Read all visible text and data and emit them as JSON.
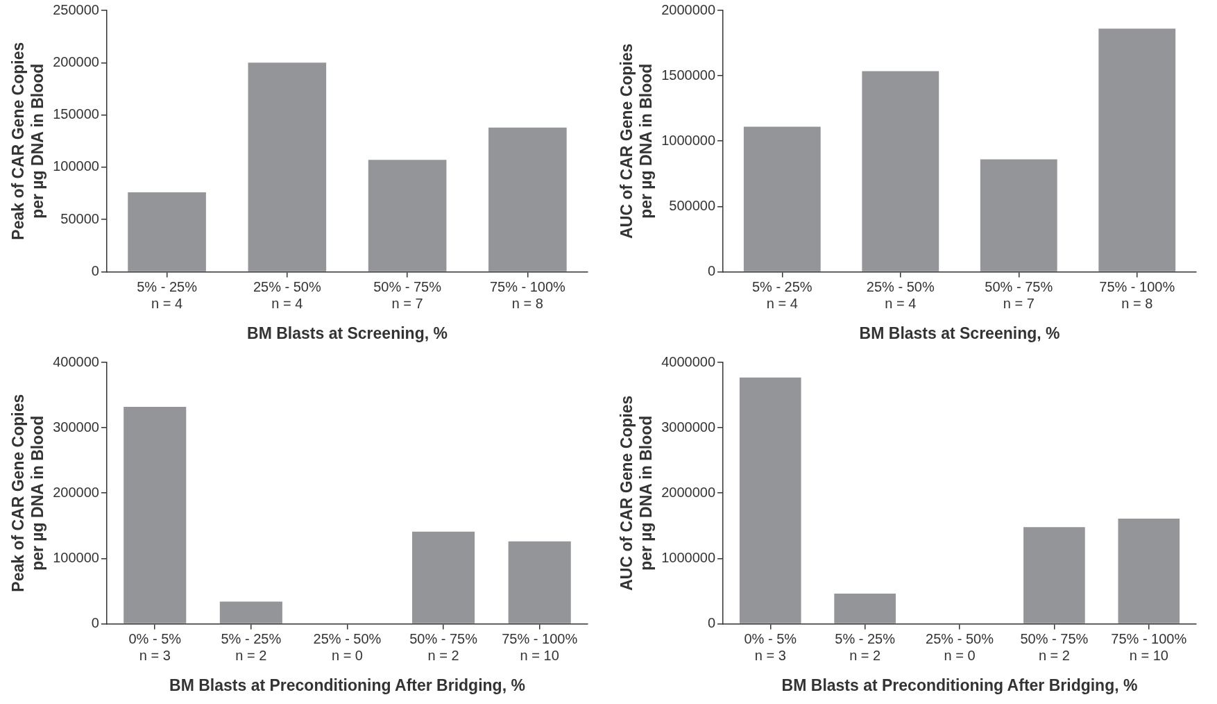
{
  "chart_data": [
    {
      "type": "bar",
      "xlabel": "BM Blasts at Screening, %",
      "ylabel": "Peak of CAR Gene Copies\nper µg DNA in Blood",
      "categories": [
        "5% - 25%\nn = 4",
        "25% - 50%\nn = 4",
        "50% - 75%\nn = 7",
        "75% - 100%\nn = 8"
      ],
      "values": [
        76000,
        200000,
        107000,
        138000
      ],
      "color": "#939598",
      "ylim": [
        0,
        250000
      ],
      "yticks": [
        0,
        50000,
        100000,
        150000,
        200000,
        250000
      ],
      "grid": false,
      "legend": false
    },
    {
      "type": "bar",
      "xlabel": "BM Blasts at Screening, %",
      "ylabel": "AUC of CAR Gene Copies\nper µg DNA in Blood",
      "categories": [
        "5% - 25%\nn = 4",
        "25% - 50%\nn = 4",
        "50% - 75%\nn = 7",
        "75% - 100%\nn = 8"
      ],
      "values": [
        1110000,
        1535000,
        860000,
        1860000
      ],
      "color": "#939598",
      "ylim": [
        0,
        2000000
      ],
      "yticks": [
        0,
        500000,
        1000000,
        1500000,
        2000000
      ],
      "grid": false,
      "legend": false
    },
    {
      "type": "bar",
      "xlabel": "BM Blasts at Preconditioning After Bridging, %",
      "ylabel": "Peak of CAR Gene Copies\nper µg DNA in Blood",
      "categories": [
        "0% - 5%\nn = 3",
        "5% - 25%\nn = 2",
        "25% - 50%\nn = 0",
        "50% - 75%\nn = 2",
        "75% - 100%\nn = 10"
      ],
      "values": [
        332000,
        34000,
        null,
        141000,
        126000
      ],
      "color": "#939598",
      "ylim": [
        0,
        400000
      ],
      "yticks": [
        0,
        100000,
        200000,
        300000,
        400000
      ],
      "grid": false,
      "legend": false
    },
    {
      "type": "bar",
      "xlabel": "BM Blasts at Preconditioning After Bridging, %",
      "ylabel": "AUC of CAR Gene Copies\nper µg DNA in Blood",
      "categories": [
        "0% - 5%\nn = 3",
        "5% - 25%\nn = 2",
        "25% - 50%\nn = 0",
        "50% - 75%\nn = 2",
        "75% - 100%\nn = 10"
      ],
      "values": [
        3770000,
        460000,
        null,
        1480000,
        1610000
      ],
      "color": "#939598",
      "ylim": [
        0,
        4000000
      ],
      "yticks": [
        0,
        1000000,
        2000000,
        3000000,
        4000000
      ],
      "grid": false,
      "legend": false
    }
  ]
}
